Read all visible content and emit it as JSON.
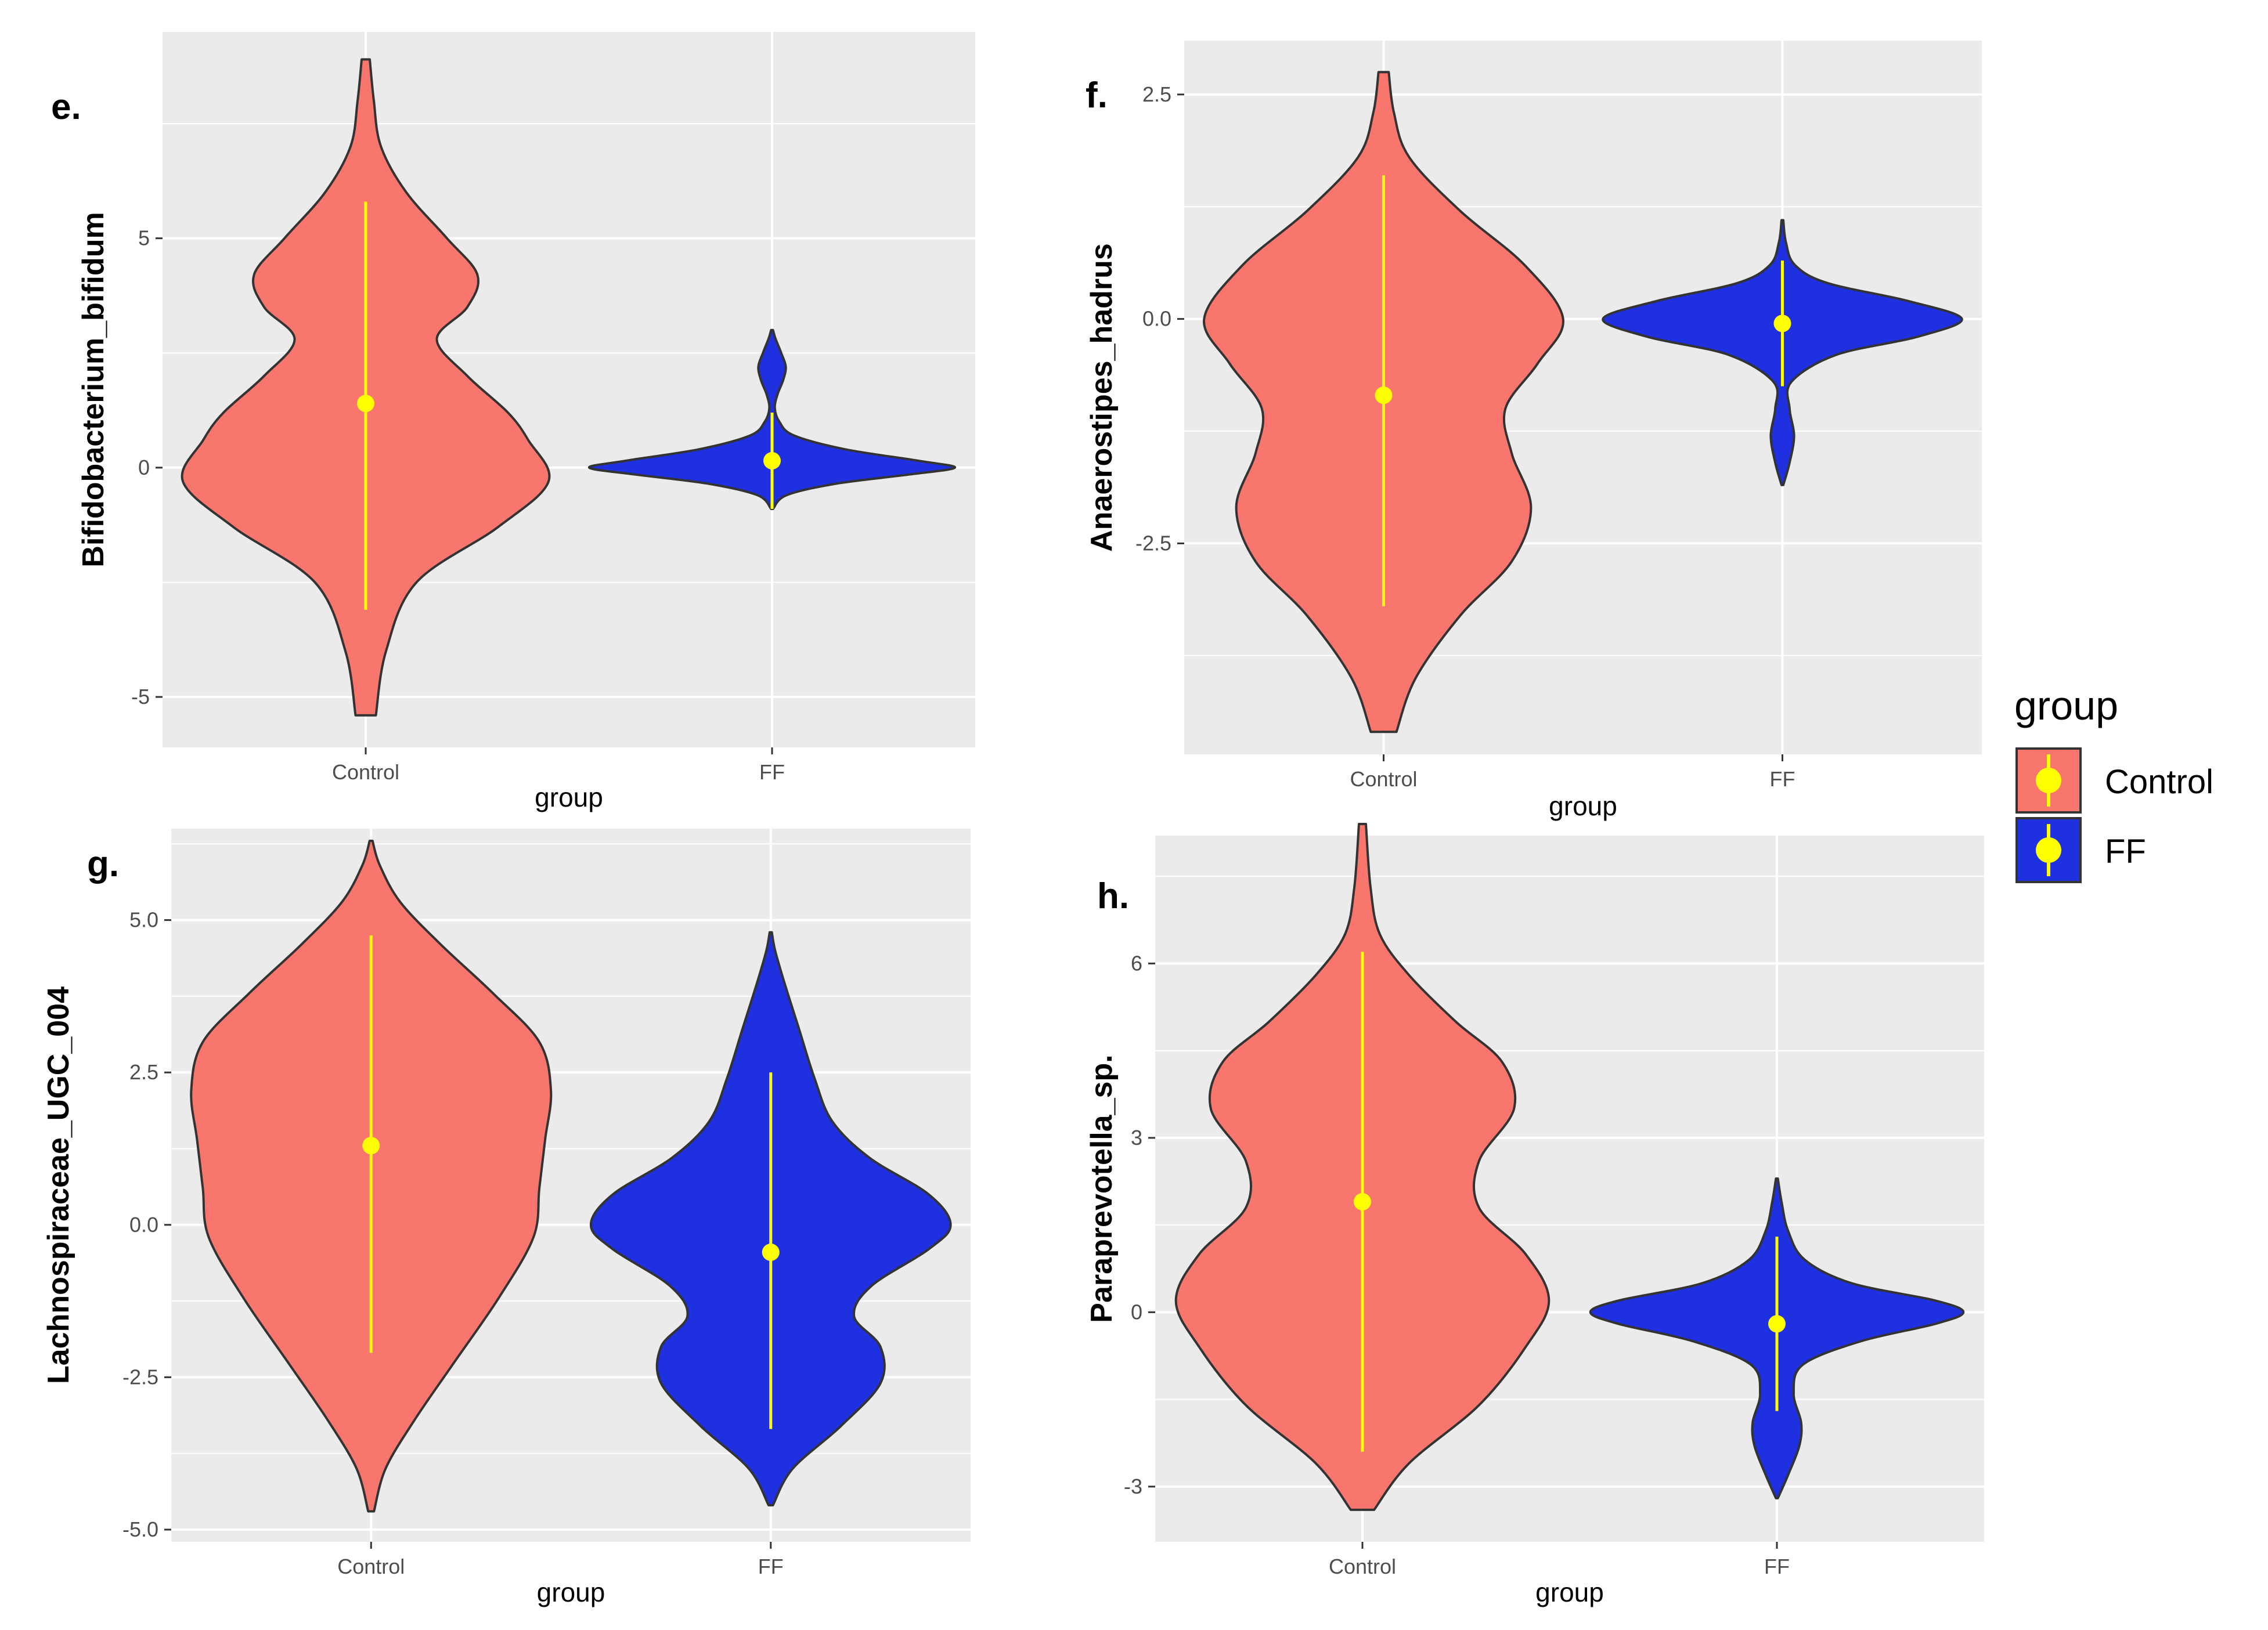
{
  "colors": {
    "Control": "#F8766D",
    "FF": "#1F30E0",
    "summary": "#FFFF00",
    "panel_bg": "#EBEBEB",
    "grid": "#FFFFFF",
    "outline": "#333333"
  },
  "legend": {
    "title": "group",
    "items": [
      {
        "label": "Control",
        "color": "#F8766D"
      },
      {
        "label": "FF",
        "color": "#1F30E0"
      }
    ]
  },
  "chart_data": [
    {
      "type": "violin",
      "panel": "e.",
      "xlabel": "group",
      "ylabel": "Bifidobacterium_bifidum",
      "categories": [
        "Control",
        "FF"
      ],
      "ylim": [
        -6.1,
        9.5
      ],
      "yticks": [
        -5,
        0,
        5
      ],
      "ytick_labels": [
        "-5",
        "0",
        "5"
      ],
      "grid": true,
      "series": [
        {
          "name": "Control",
          "min": -5.4,
          "max": 8.9,
          "mean": 1.4,
          "lower": -3.1,
          "upper": 5.8,
          "profile": [
            [
              -5.4,
              0.01
            ],
            [
              -4.0,
              0.02
            ],
            [
              -2.5,
              0.05
            ],
            [
              -1.3,
              0.13
            ],
            [
              -0.3,
              0.18
            ],
            [
              0.6,
              0.16
            ],
            [
              1.2,
              0.14
            ],
            [
              2.0,
              0.1
            ],
            [
              2.8,
              0.07
            ],
            [
              3.5,
              0.1
            ],
            [
              4.2,
              0.11
            ],
            [
              5.0,
              0.08
            ],
            [
              6.0,
              0.04
            ],
            [
              7.0,
              0.015
            ],
            [
              8.0,
              0.008
            ],
            [
              8.9,
              0.004
            ]
          ]
        },
        {
          "name": "FF",
          "min": -0.9,
          "max": 3.0,
          "mean": 0.15,
          "lower": -0.9,
          "upper": 1.2,
          "profile": [
            [
              -0.9,
              0.005
            ],
            [
              -0.6,
              0.08
            ],
            [
              -0.35,
              0.35
            ],
            [
              -0.15,
              0.75
            ],
            [
              0.0,
              1.0
            ],
            [
              0.15,
              0.8
            ],
            [
              0.4,
              0.4
            ],
            [
              0.7,
              0.12
            ],
            [
              1.0,
              0.04
            ],
            [
              1.3,
              0.015
            ],
            [
              1.6,
              0.03
            ],
            [
              1.9,
              0.06
            ],
            [
              2.2,
              0.075
            ],
            [
              2.5,
              0.05
            ],
            [
              2.8,
              0.02
            ],
            [
              3.0,
              0.005
            ]
          ]
        }
      ]
    },
    {
      "type": "violin",
      "panel": "f.",
      "xlabel": "group",
      "ylabel": "Anaerostipes_hadrus",
      "categories": [
        "Control",
        "FF"
      ],
      "ylim": [
        -4.85,
        3.1
      ],
      "yticks": [
        -2.5,
        0.0,
        2.5
      ],
      "ytick_labels": [
        "-2.5",
        "0.0",
        "2.5"
      ],
      "grid": true,
      "series": [
        {
          "name": "Control",
          "min": -4.6,
          "max": 2.75,
          "mean": -0.85,
          "lower": -3.2,
          "upper": 1.6,
          "profile": [
            [
              -4.6,
              0.01
            ],
            [
              -4.0,
              0.025
            ],
            [
              -3.3,
              0.06
            ],
            [
              -2.7,
              0.1
            ],
            [
              -2.1,
              0.115
            ],
            [
              -1.5,
              0.1
            ],
            [
              -1.0,
              0.095
            ],
            [
              -0.5,
              0.12
            ],
            [
              0.0,
              0.14
            ],
            [
              0.6,
              0.11
            ],
            [
              1.2,
              0.06
            ],
            [
              1.8,
              0.02
            ],
            [
              2.3,
              0.008
            ],
            [
              2.75,
              0.004
            ]
          ]
        },
        {
          "name": "FF",
          "min": -1.85,
          "max": 1.1,
          "mean": -0.05,
          "lower": -0.75,
          "upper": 0.65,
          "profile": [
            [
              -1.85,
              0.005
            ],
            [
              -1.6,
              0.04
            ],
            [
              -1.3,
              0.065
            ],
            [
              -1.0,
              0.04
            ],
            [
              -0.7,
              0.05
            ],
            [
              -0.4,
              0.3
            ],
            [
              -0.2,
              0.75
            ],
            [
              0.0,
              1.0
            ],
            [
              0.2,
              0.7
            ],
            [
              0.4,
              0.25
            ],
            [
              0.6,
              0.07
            ],
            [
              0.85,
              0.02
            ],
            [
              1.1,
              0.005
            ]
          ]
        }
      ]
    },
    {
      "type": "violin",
      "panel": "g.",
      "xlabel": "group",
      "ylabel": "Lachnospiraceae_UGC_004",
      "categories": [
        "Control",
        "FF"
      ],
      "ylim": [
        -5.2,
        6.5
      ],
      "yticks": [
        -5.0,
        -2.5,
        0.0,
        2.5,
        5.0
      ],
      "ytick_labels": [
        "-5.0",
        "-2.5",
        "0.0",
        "2.5",
        "5.0"
      ],
      "grid": true,
      "series": [
        {
          "name": "Control",
          "min": -4.7,
          "max": 6.3,
          "mean": 1.3,
          "lower": -2.1,
          "upper": 4.75,
          "profile": [
            [
              -4.7,
              0.01
            ],
            [
              -4.0,
              0.05
            ],
            [
              -3.2,
              0.15
            ],
            [
              -2.3,
              0.28
            ],
            [
              -1.2,
              0.44
            ],
            [
              -0.2,
              0.56
            ],
            [
              0.6,
              0.58
            ],
            [
              1.4,
              0.6
            ],
            [
              2.2,
              0.62
            ],
            [
              3.0,
              0.58
            ],
            [
              3.8,
              0.42
            ],
            [
              4.6,
              0.24
            ],
            [
              5.3,
              0.1
            ],
            [
              5.9,
              0.03
            ],
            [
              6.3,
              0.005
            ]
          ]
        },
        {
          "name": "FF",
          "min": -4.6,
          "max": 4.8,
          "mean": -0.45,
          "lower": -3.35,
          "upper": 2.5,
          "profile": [
            [
              -4.6,
              0.01
            ],
            [
              -4.0,
              0.1
            ],
            [
              -3.3,
              0.32
            ],
            [
              -2.6,
              0.5
            ],
            [
              -2.0,
              0.5
            ],
            [
              -1.5,
              0.38
            ],
            [
              -1.0,
              0.46
            ],
            [
              -0.4,
              0.72
            ],
            [
              0.0,
              0.82
            ],
            [
              0.5,
              0.72
            ],
            [
              1.1,
              0.45
            ],
            [
              1.7,
              0.28
            ],
            [
              2.4,
              0.2
            ],
            [
              3.2,
              0.13
            ],
            [
              4.0,
              0.06
            ],
            [
              4.5,
              0.02
            ],
            [
              4.8,
              0.005
            ]
          ]
        }
      ]
    },
    {
      "type": "violin",
      "panel": "h.",
      "xlabel": "group",
      "ylabel": "Paraprevotella_sp.",
      "categories": [
        "Control",
        "FF"
      ],
      "ylim": [
        -3.95,
        8.2
      ],
      "yticks": [
        -3,
        0,
        3,
        6
      ],
      "ytick_labels": [
        "-3",
        "0",
        "3",
        "6"
      ],
      "grid": true,
      "series": [
        {
          "name": "Control",
          "min": -3.4,
          "max": 8.4,
          "mean": 1.9,
          "lower": -2.4,
          "upper": 6.2,
          "profile": [
            [
              -3.4,
              0.01
            ],
            [
              -2.6,
              0.04
            ],
            [
              -1.6,
              0.1
            ],
            [
              -0.6,
              0.14
            ],
            [
              0.2,
              0.16
            ],
            [
              1.0,
              0.14
            ],
            [
              1.8,
              0.1
            ],
            [
              2.6,
              0.1
            ],
            [
              3.5,
              0.13
            ],
            [
              4.3,
              0.12
            ],
            [
              5.0,
              0.08
            ],
            [
              5.8,
              0.04
            ],
            [
              6.5,
              0.015
            ],
            [
              7.3,
              0.007
            ],
            [
              8.4,
              0.003
            ]
          ]
        },
        {
          "name": "FF",
          "min": -3.2,
          "max": 2.3,
          "mean": -0.2,
          "lower": -1.7,
          "upper": 1.3,
          "profile": [
            [
              -3.2,
              0.005
            ],
            [
              -2.8,
              0.06
            ],
            [
              -2.3,
              0.12
            ],
            [
              -1.9,
              0.13
            ],
            [
              -1.4,
              0.09
            ],
            [
              -0.9,
              0.14
            ],
            [
              -0.5,
              0.45
            ],
            [
              -0.2,
              0.85
            ],
            [
              0.0,
              1.0
            ],
            [
              0.2,
              0.85
            ],
            [
              0.5,
              0.4
            ],
            [
              0.9,
              0.15
            ],
            [
              1.4,
              0.06
            ],
            [
              1.9,
              0.025
            ],
            [
              2.3,
              0.005
            ]
          ]
        }
      ]
    }
  ]
}
